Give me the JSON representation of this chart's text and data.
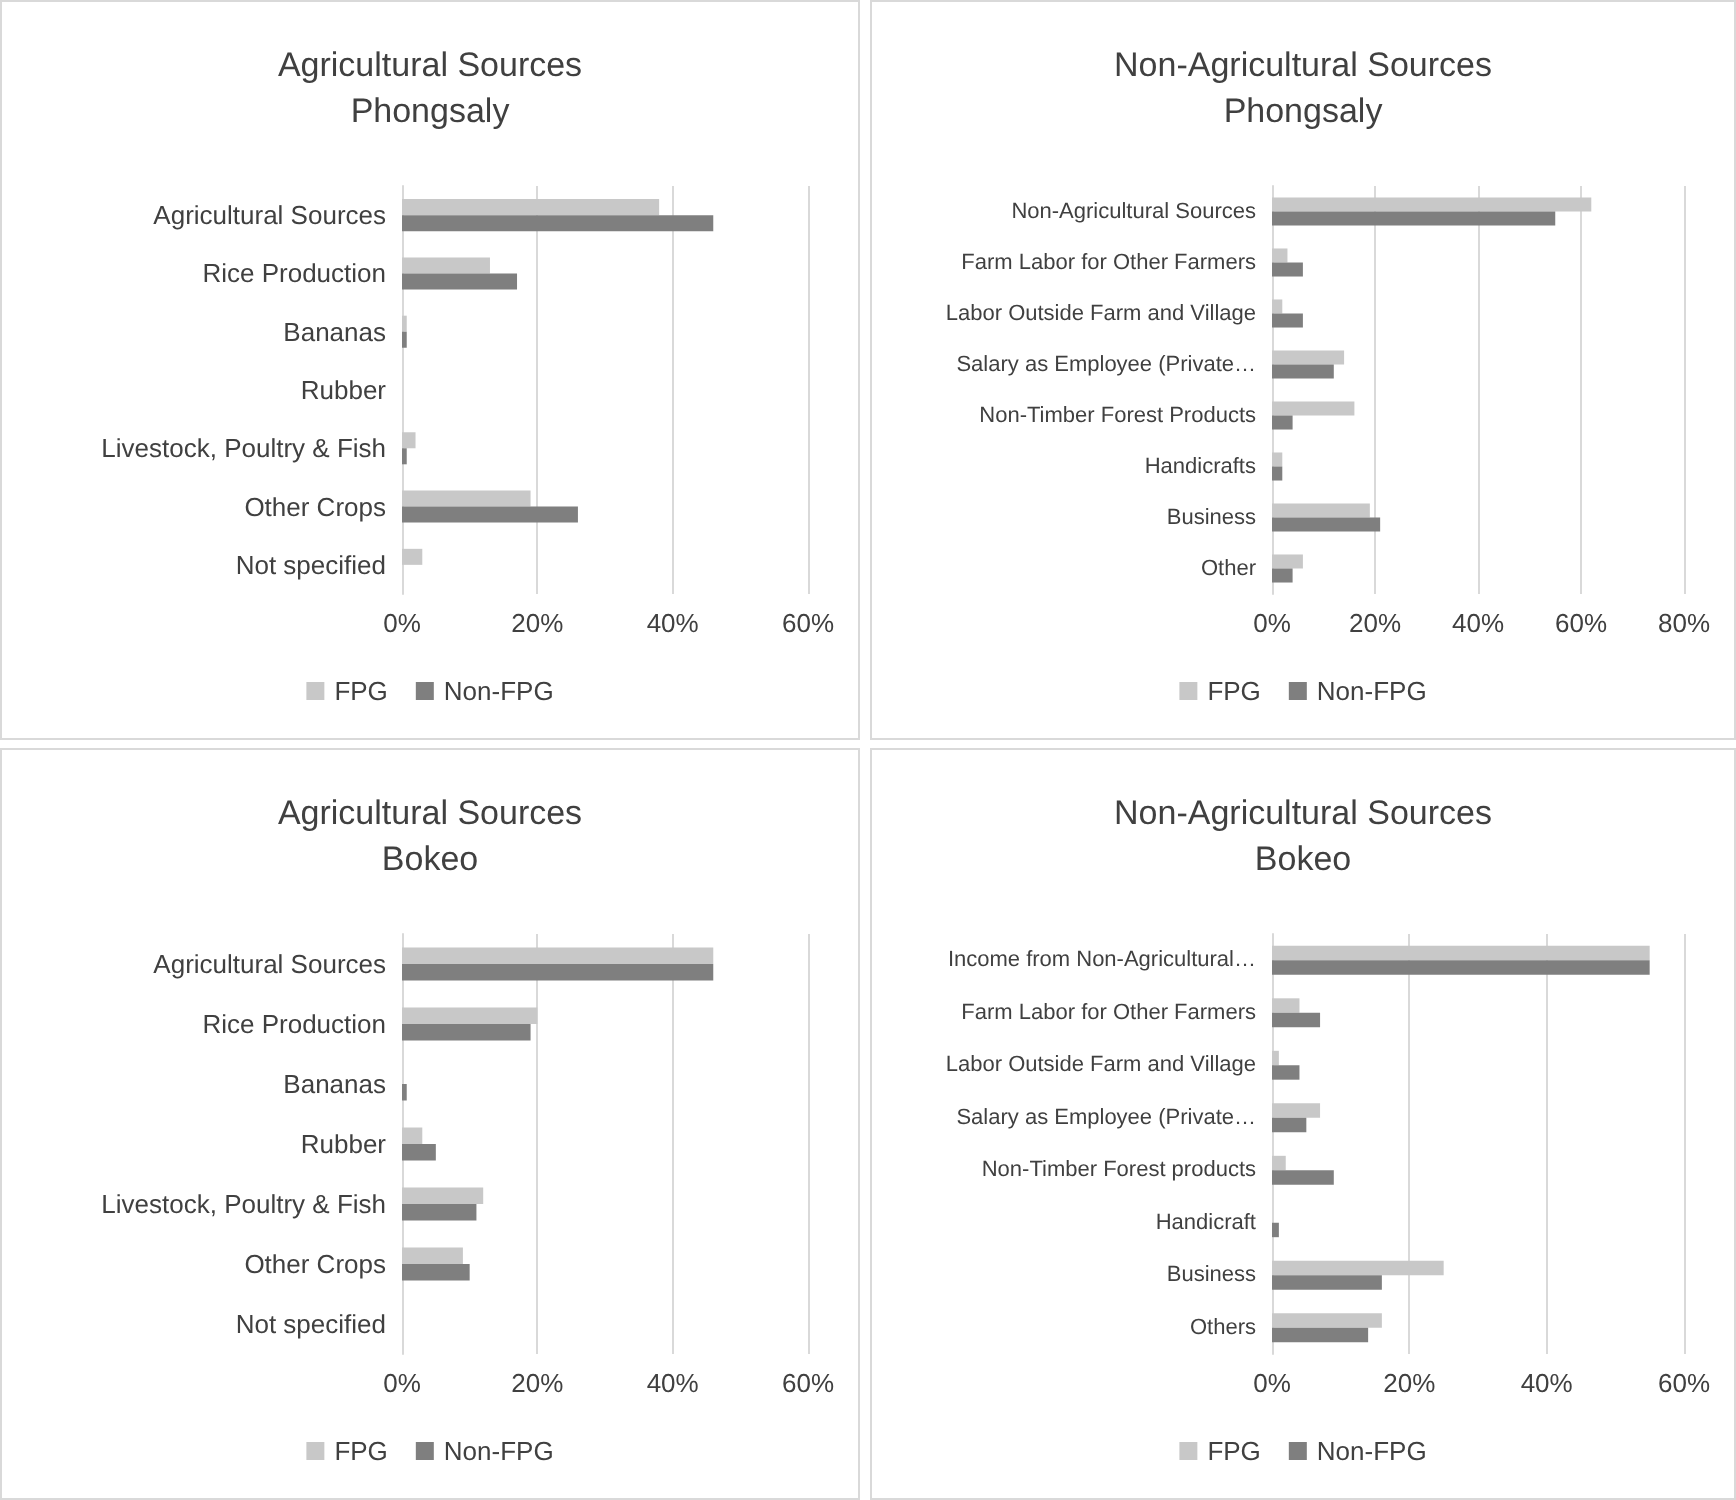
{
  "chart_data": [
    {
      "type": "bar",
      "orientation": "horizontal",
      "title": "Agricultural Sources",
      "subtitle": "Phongsaly",
      "categories": [
        "Agricultural Sources",
        "Rice Production",
        "Bananas",
        "Rubber",
        "Livestock, Poultry & Fish",
        "Other Crops",
        "Not specified"
      ],
      "series": [
        {
          "name": "FPG",
          "color": "#c8c8c8",
          "values": [
            38,
            13,
            0.7,
            0,
            2,
            19,
            3
          ]
        },
        {
          "name": "Non-FPG",
          "color": "#7f7f7f",
          "values": [
            46,
            17,
            0.7,
            0,
            0.7,
            26,
            0
          ]
        }
      ],
      "xlim": [
        0,
        60
      ],
      "xticks": [
        {
          "value": 0,
          "label": "0%"
        },
        {
          "value": 20,
          "label": "20%"
        },
        {
          "value": 40,
          "label": "40%"
        },
        {
          "value": 60,
          "label": "60%"
        }
      ],
      "grid": "x",
      "legend": "bottom"
    },
    {
      "type": "bar",
      "orientation": "horizontal",
      "title": "Non-Agricultural Sources",
      "subtitle": "Phongsaly",
      "categories": [
        "Non-Agricultural Sources",
        "Farm Labor for Other Farmers",
        "Labor Outside Farm and Village",
        "Salary as Employee (Private…",
        "Non-Timber Forest Products",
        "Handicrafts",
        "Business",
        "Other"
      ],
      "series": [
        {
          "name": "FPG",
          "color": "#c8c8c8",
          "values": [
            62,
            3,
            2,
            14,
            16,
            2,
            19,
            6
          ]
        },
        {
          "name": "Non-FPG",
          "color": "#7f7f7f",
          "values": [
            55,
            6,
            6,
            12,
            4,
            2,
            21,
            4
          ]
        }
      ],
      "xlim": [
        0,
        80
      ],
      "xticks": [
        {
          "value": 0,
          "label": "0%"
        },
        {
          "value": 20,
          "label": "20%"
        },
        {
          "value": 40,
          "label": "40%"
        },
        {
          "value": 60,
          "label": "60%"
        },
        {
          "value": 80,
          "label": "80%"
        }
      ],
      "grid": "x",
      "legend": "bottom"
    },
    {
      "type": "bar",
      "orientation": "horizontal",
      "title": "Agricultural Sources",
      "subtitle": "Bokeo",
      "categories": [
        "Agricultural Sources",
        "Rice Production",
        "Bananas",
        "Rubber",
        "Livestock, Poultry & Fish",
        "Other Crops",
        "Not specified"
      ],
      "series": [
        {
          "name": "FPG",
          "color": "#c8c8c8",
          "values": [
            46,
            20,
            0,
            3,
            12,
            9,
            0
          ]
        },
        {
          "name": "Non-FPG",
          "color": "#7f7f7f",
          "values": [
            46,
            19,
            0.7,
            5,
            11,
            10,
            0
          ]
        }
      ],
      "xlim": [
        0,
        60
      ],
      "xticks": [
        {
          "value": 0,
          "label": "0%"
        },
        {
          "value": 20,
          "label": "20%"
        },
        {
          "value": 40,
          "label": "40%"
        },
        {
          "value": 60,
          "label": "60%"
        }
      ],
      "grid": "x",
      "legend": "bottom"
    },
    {
      "type": "bar",
      "orientation": "horizontal",
      "title": "Non-Agricultural Sources",
      "subtitle": "Bokeo",
      "categories": [
        "Income from Non-Agricultural…",
        "Farm Labor for Other Farmers",
        "Labor Outside Farm and Village",
        "Salary as Employee (Private…",
        "Non-Timber Forest products",
        "Handicraft",
        "Business",
        "Others"
      ],
      "series": [
        {
          "name": "FPG",
          "color": "#c8c8c8",
          "values": [
            55,
            4,
            1,
            7,
            2,
            0,
            25,
            16
          ]
        },
        {
          "name": "Non-FPG",
          "color": "#7f7f7f",
          "values": [
            55,
            7,
            4,
            5,
            9,
            1,
            16,
            14
          ]
        }
      ],
      "xlim": [
        0,
        60
      ],
      "xticks": [
        {
          "value": 0,
          "label": "0%"
        },
        {
          "value": 20,
          "label": "20%"
        },
        {
          "value": 40,
          "label": "40%"
        },
        {
          "value": 60,
          "label": "60%"
        }
      ],
      "grid": "x",
      "legend": "bottom"
    }
  ]
}
